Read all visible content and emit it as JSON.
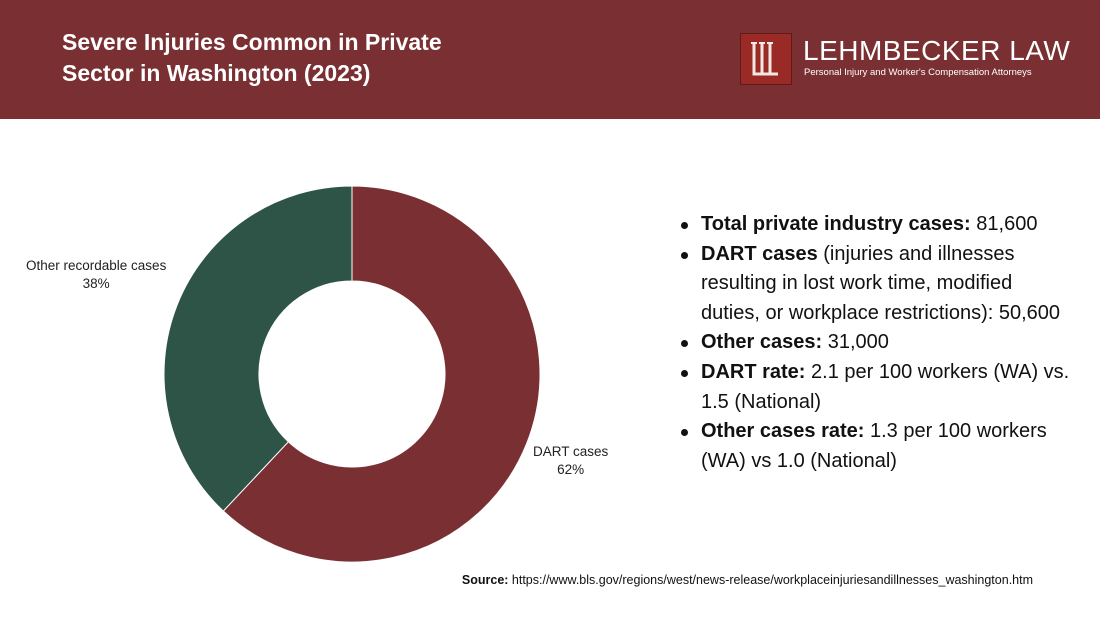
{
  "header": {
    "title": "Severe Injuries Common in Private Sector in Washington (2023)",
    "background": "#7a3033"
  },
  "logo": {
    "name": "LEHMBECKER LAW",
    "tagline": "Personal Injury and Worker's Compensation Attorneys",
    "mark_color": "#9a2a25"
  },
  "chart_data": {
    "type": "pie",
    "style": "donut",
    "title": "",
    "categories": [
      "DART cases",
      "Other recordable cases"
    ],
    "values": [
      62,
      38
    ],
    "value_labels": [
      "62%",
      "38%"
    ],
    "colors": [
      "#7a3033",
      "#2d5446"
    ]
  },
  "facts": [
    {
      "key": "Total private industry cases:",
      "text": " 81,600"
    },
    {
      "key": "DART cases",
      "text": " (injuries and illnesses resulting in lost work time, modified duties, or workplace restrictions): 50,600"
    },
    {
      "key": "Other cases:",
      "text": " 31,000"
    },
    {
      "key": "DART rate:",
      "text": " 2.1 per 100 workers (WA) vs. 1.5 (National)"
    },
    {
      "key": "Other cases rate:",
      "text": " 1.3 per 100 workers (WA) vs 1.0 (National)"
    }
  ],
  "source": {
    "key": "Source:",
    "text": " https://www.bls.gov/regions/west/news-release/workplaceinjuriesandillnesses_washington.htm"
  }
}
